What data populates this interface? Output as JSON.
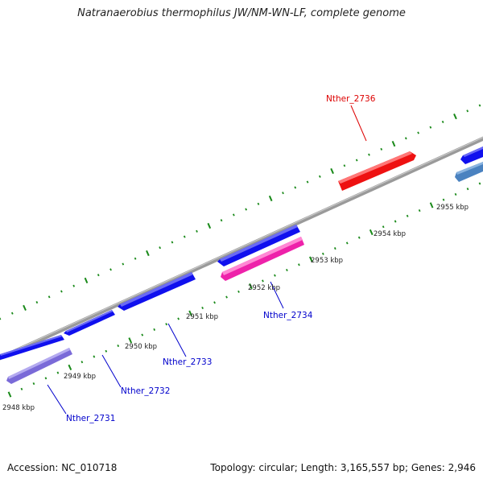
{
  "title": "Natranaerobius thermophilus JW/NM-WN-LF, complete genome",
  "footer": {
    "accession": "Accession: NC_010718",
    "summary": "Topology: circular; Length: 3,165,557 bp; Genes: 2,946"
  },
  "colors": {
    "backbone": "#8c8c8c",
    "tick": "#1a8a1a",
    "blue_gene": "#1010ee",
    "red_gene": "#ee1111",
    "pink_gene": "#ee22aa",
    "violet_gene": "#7a6ad8",
    "steel_gene": "#4a82c0",
    "blue_label": "#0000cc",
    "red_label": "#dd0000"
  },
  "positions": [
    "2948 kbp",
    "2949 kbp",
    "2950 kbp",
    "2951 kbp",
    "2952 kbp",
    "2953 kbp",
    "2954 kbp",
    "2955 kbp"
  ],
  "genes": [
    {
      "label": "Nther_2731",
      "color": "violet_gene"
    },
    {
      "label": "Nther_2732",
      "color": "blue_gene"
    },
    {
      "label": "Nther_2733",
      "color": "blue_gene"
    },
    {
      "label": "Nther_2734",
      "color": "pink_gene"
    },
    {
      "label": "Nther_2736",
      "color": "red_gene"
    }
  ]
}
